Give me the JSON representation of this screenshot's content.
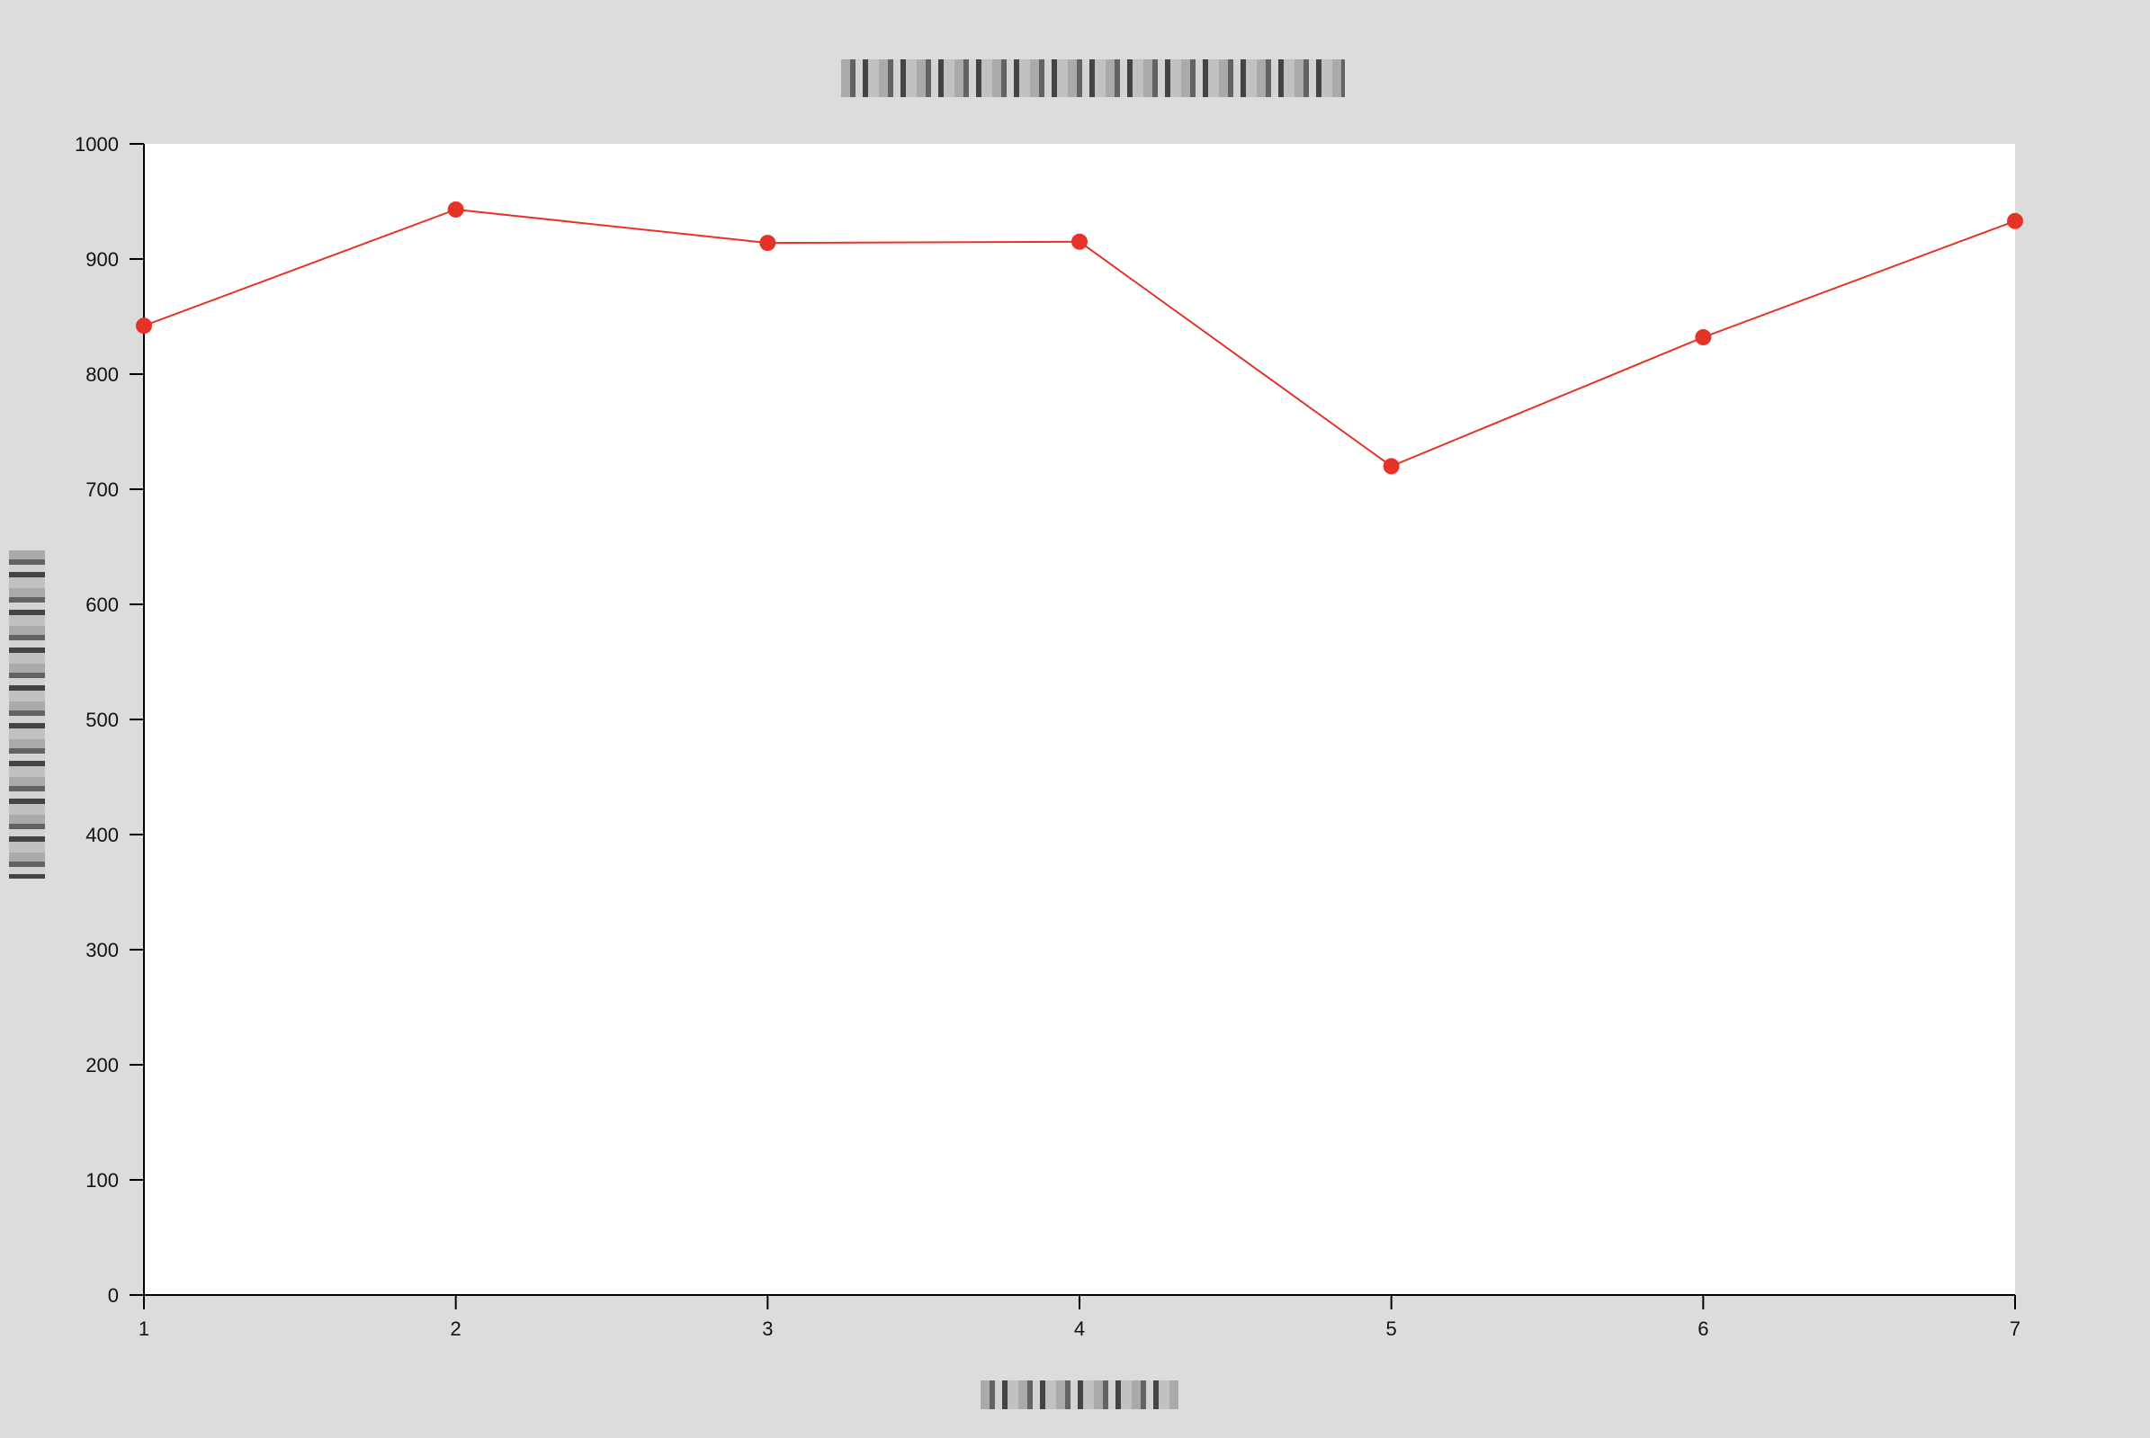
{
  "chart_data": {
    "type": "line",
    "title": "",
    "xlabel": "",
    "ylabel": "",
    "x": [
      1,
      2,
      3,
      4,
      5,
      6,
      7
    ],
    "series": [
      {
        "values": [
          842,
          943,
          914,
          915,
          720,
          832,
          933
        ]
      }
    ],
    "xlim": [
      1,
      7
    ],
    "ylim": [
      0,
      1000
    ],
    "x_ticks": [
      "1",
      "2",
      "3",
      "4",
      "5",
      "6",
      "7"
    ],
    "y_ticks": [
      "0",
      "100",
      "200",
      "300",
      "400",
      "500",
      "600",
      "700",
      "800",
      "900",
      "1000"
    ],
    "grid": false,
    "legend": "none",
    "colors": {
      "background": "#dcdcdc",
      "plot_background": "#ffffff",
      "series": "#e53327",
      "axis": "#000000"
    }
  }
}
